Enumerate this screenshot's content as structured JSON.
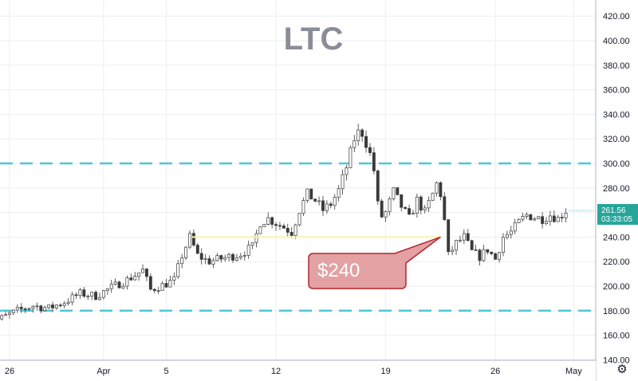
{
  "chart_data": {
    "type": "candlestick",
    "title": "LTC",
    "y_axis": {
      "ticks": [
        "420.00",
        "400.00",
        "380.00",
        "360.00",
        "340.00",
        "320.00",
        "300.00",
        "280.00",
        "260.00",
        "240.00",
        "220.00",
        "200.00",
        "180.00",
        "160.00",
        "140.00"
      ],
      "ylim": [
        140,
        425
      ],
      "position": "right"
    },
    "x_axis": {
      "ticks": [
        {
          "label": "26",
          "day": 0
        },
        {
          "label": "Apr",
          "day": 6
        },
        {
          "label": "5",
          "day": 10
        },
        {
          "label": "12",
          "day": 17
        },
        {
          "label": "19",
          "day": 24
        },
        {
          "label": "26",
          "day": 31
        },
        {
          "label": "May",
          "day": 36
        }
      ]
    },
    "grid": true,
    "horizontal_lines": [
      {
        "value": 300,
        "style": "dashed",
        "color": "#4ec7d4"
      },
      {
        "value": 180,
        "style": "dashed",
        "color": "#4ec7d4"
      }
    ],
    "support_line": {
      "value": 240,
      "color": "#fff2a8",
      "from_day": 11.6,
      "to_day": 27.5
    },
    "callout": {
      "text": "$240",
      "points_to_day": 27.5,
      "points_to_value": 240
    },
    "last_price": {
      "value": "261.56",
      "countdown": "03:33:05",
      "color": "#26a69a"
    },
    "series": [
      {
        "name": "LTC",
        "points": [
          {
            "day": -1.5,
            "value": 170
          },
          {
            "day": -0.5,
            "value": 174
          },
          {
            "day": 0.5,
            "value": 180
          },
          {
            "day": 1.5,
            "value": 184
          },
          {
            "day": 2.5,
            "value": 182
          },
          {
            "day": 3.5,
            "value": 187
          },
          {
            "day": 4.5,
            "value": 194
          },
          {
            "day": 5.5,
            "value": 192
          },
          {
            "day": 6.5,
            "value": 199
          },
          {
            "day": 7.5,
            "value": 205
          },
          {
            "day": 8.5,
            "value": 213
          },
          {
            "day": 9.0,
            "value": 197
          },
          {
            "day": 10.0,
            "value": 202
          },
          {
            "day": 10.5,
            "value": 205
          },
          {
            "day": 11.0,
            "value": 225
          },
          {
            "day": 11.5,
            "value": 240
          },
          {
            "day": 12.0,
            "value": 225
          },
          {
            "day": 12.7,
            "value": 220
          },
          {
            "day": 13.7,
            "value": 223
          },
          {
            "day": 14.7,
            "value": 226
          },
          {
            "day": 15.5,
            "value": 232
          },
          {
            "day": 16.0,
            "value": 252
          },
          {
            "day": 16.5,
            "value": 255
          },
          {
            "day": 17.5,
            "value": 248
          },
          {
            "day": 18.0,
            "value": 244
          },
          {
            "day": 18.5,
            "value": 262
          },
          {
            "day": 19.0,
            "value": 275
          },
          {
            "day": 19.5,
            "value": 270
          },
          {
            "day": 20.0,
            "value": 262
          },
          {
            "day": 20.5,
            "value": 267
          },
          {
            "day": 21.0,
            "value": 278
          },
          {
            "day": 21.5,
            "value": 297
          },
          {
            "day": 22.0,
            "value": 320
          },
          {
            "day": 22.4,
            "value": 328
          },
          {
            "day": 22.8,
            "value": 315
          },
          {
            "day": 23.2,
            "value": 300
          },
          {
            "day": 23.6,
            "value": 255
          },
          {
            "day": 24.0,
            "value": 260
          },
          {
            "day": 24.5,
            "value": 277
          },
          {
            "day": 25.0,
            "value": 265
          },
          {
            "day": 25.5,
            "value": 255
          },
          {
            "day": 26.0,
            "value": 270
          },
          {
            "day": 26.5,
            "value": 260
          },
          {
            "day": 27.0,
            "value": 275
          },
          {
            "day": 27.3,
            "value": 285
          },
          {
            "day": 27.6,
            "value": 270
          },
          {
            "day": 28.0,
            "value": 225
          },
          {
            "day": 28.5,
            "value": 235
          },
          {
            "day": 29.0,
            "value": 240
          },
          {
            "day": 29.5,
            "value": 228
          },
          {
            "day": 30.0,
            "value": 224
          },
          {
            "day": 30.5,
            "value": 230
          },
          {
            "day": 31.0,
            "value": 222
          },
          {
            "day": 31.5,
            "value": 240
          },
          {
            "day": 32.0,
            "value": 244
          },
          {
            "day": 32.5,
            "value": 252
          },
          {
            "day": 33.0,
            "value": 258
          },
          {
            "day": 33.5,
            "value": 256
          },
          {
            "day": 34.0,
            "value": 255
          },
          {
            "day": 34.5,
            "value": 258
          },
          {
            "day": 35.0,
            "value": 255
          },
          {
            "day": 35.5,
            "value": 261.56
          }
        ]
      }
    ]
  }
}
